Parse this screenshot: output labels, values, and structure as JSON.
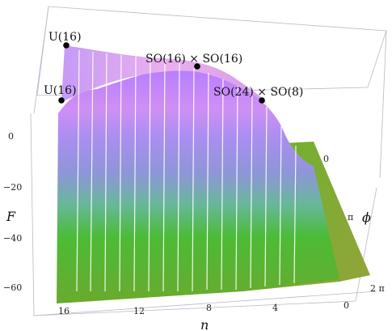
{
  "figure": {
    "axes": {
      "x_label": "n",
      "y_label": "F",
      "z_label": "ϕ",
      "x_ticks": [
        "16",
        "12",
        "8",
        "4",
        "0"
      ],
      "y_ticks": [
        "0",
        "−20",
        "−40",
        "−60"
      ],
      "z_ticks": [
        "0",
        "π",
        "2 π"
      ]
    },
    "points": [
      {
        "label": "U(16)"
      },
      {
        "label": "U(16)"
      },
      {
        "label": "SO(16) × SO(16)"
      },
      {
        "label": "SO(24) × SO(8)"
      }
    ],
    "colors": {
      "top_purple": "#b27cff",
      "pink": "#e9a7e8",
      "green": "#4dbb2b",
      "olive": "#8fb23c",
      "grid": "#ffffff",
      "frame": "#b8b8c8"
    }
  }
}
